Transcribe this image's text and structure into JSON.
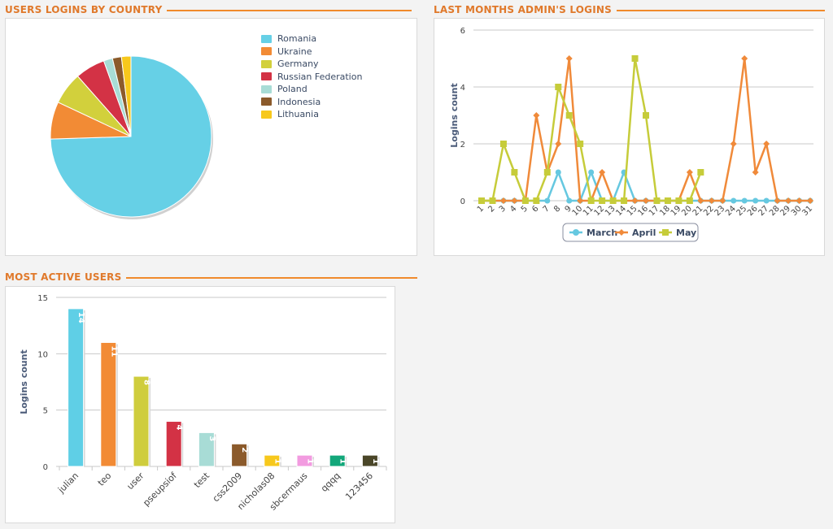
{
  "sections": {
    "country": {
      "title": "USERS LOGINS BY COUNTRY"
    },
    "admin": {
      "title": "LAST MONTHS ADMIN'S LOGINS"
    },
    "users": {
      "title": "MOST ACTIVE USERS"
    }
  },
  "chart_data": [
    {
      "type": "pie",
      "title": "USERS LOGINS BY COUNTRY",
      "legend_position": "top-right",
      "slices": [
        {
          "label": "Romania",
          "value": 74.5,
          "color": "#66d0e6"
        },
        {
          "label": "Ukraine",
          "value": 7.5,
          "color": "#f28b35"
        },
        {
          "label": "Germany",
          "value": 6.5,
          "color": "#d2d03c"
        },
        {
          "label": "Russian Federation",
          "value": 6.0,
          "color": "#d33245"
        },
        {
          "label": "Poland",
          "value": 1.8,
          "color": "#a8dcd6"
        },
        {
          "label": "Indonesia",
          "value": 1.8,
          "color": "#8b5a2b"
        },
        {
          "label": "Lithuania",
          "value": 1.9,
          "color": "#f7c81c"
        }
      ]
    },
    {
      "type": "line",
      "title": "LAST MONTHS ADMIN'S LOGINS",
      "ylabel": "Logins count",
      "ylim": [
        0,
        6
      ],
      "yticks": [
        0,
        2,
        4,
        6
      ],
      "x": [
        1,
        2,
        3,
        4,
        5,
        6,
        7,
        8,
        9,
        10,
        11,
        12,
        13,
        14,
        15,
        16,
        17,
        18,
        19,
        20,
        21,
        22,
        23,
        24,
        25,
        26,
        27,
        28,
        29,
        30,
        31
      ],
      "grid": true,
      "legend_position": "bottom",
      "series": [
        {
          "name": "March",
          "color": "#66c8e0",
          "marker": "circle",
          "values": [
            0,
            0,
            0,
            0,
            0,
            0,
            0,
            1,
            0,
            0,
            1,
            0,
            0,
            1,
            0,
            0,
            0,
            0,
            0,
            0,
            0,
            0,
            0,
            0,
            0,
            0,
            0,
            0,
            0,
            0,
            0
          ]
        },
        {
          "name": "April",
          "color": "#f08a3a",
          "marker": "diamond",
          "values": [
            0,
            0,
            0,
            0,
            0,
            3,
            1,
            2,
            5,
            0,
            0,
            1,
            0,
            0,
            0,
            0,
            0,
            0,
            0,
            1,
            0,
            0,
            0,
            2,
            5,
            1,
            2,
            0,
            0,
            0,
            0
          ]
        },
        {
          "name": "May",
          "color": "#c6cc3a",
          "marker": "square",
          "values": [
            0,
            0,
            2,
            1,
            0,
            0,
            1,
            4,
            3,
            2,
            0,
            0,
            0,
            0,
            5,
            3,
            0,
            0,
            0,
            0,
            1,
            null,
            null,
            null,
            null,
            null,
            null,
            null,
            null,
            null,
            null
          ]
        }
      ]
    },
    {
      "type": "bar",
      "title": "MOST ACTIVE USERS",
      "ylabel": "Logins count",
      "ylim": [
        0,
        15
      ],
      "yticks": [
        0,
        5,
        10,
        15
      ],
      "grid": true,
      "categories": [
        "julian",
        "teo",
        "user",
        "pseupsiof",
        "test",
        "css2009",
        "nicholas08",
        "sbcermaus",
        "qqqq",
        "123456"
      ],
      "values": [
        14,
        11,
        8,
        4,
        3,
        2,
        1,
        1,
        1,
        1
      ],
      "colors": [
        "#5fcfe6",
        "#f28b35",
        "#cfcd3d",
        "#d33245",
        "#a8dcd6",
        "#8b5a2b",
        "#f7c81c",
        "#f29be0",
        "#13a77a",
        "#4a4628"
      ]
    }
  ]
}
